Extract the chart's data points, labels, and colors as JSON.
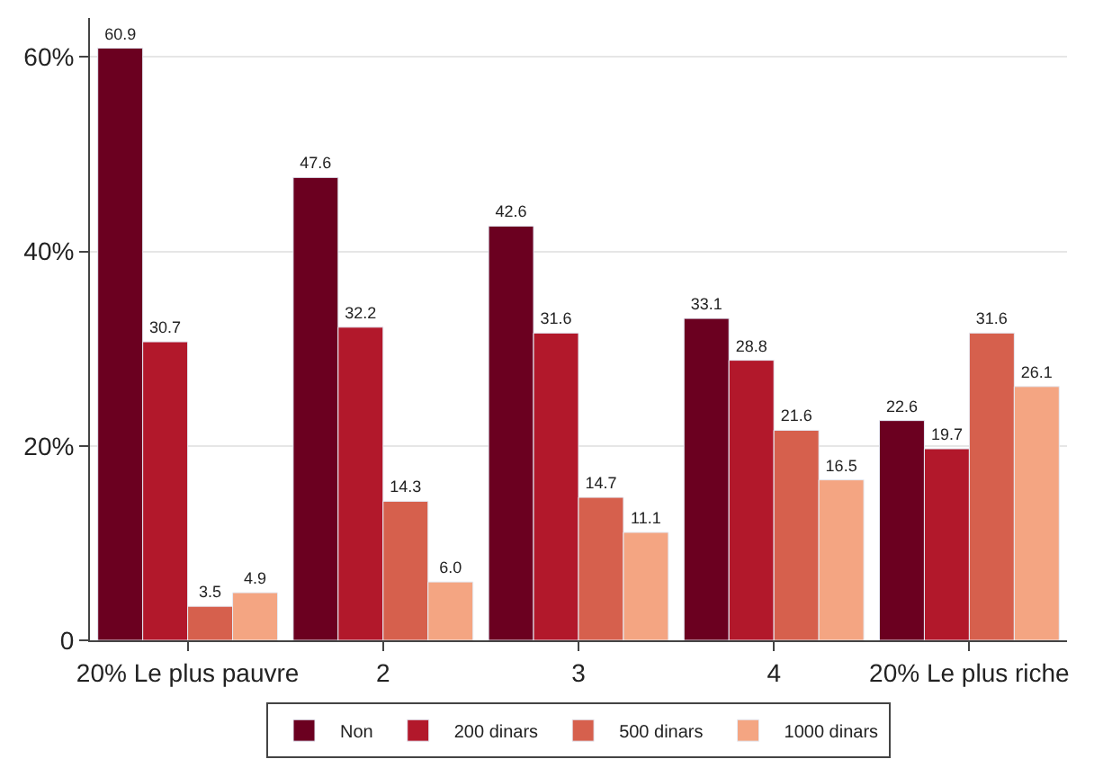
{
  "chart_data": {
    "type": "bar",
    "categories": [
      "20% Le plus pauvre",
      "2",
      "3",
      "4",
      "20% Le plus riche"
    ],
    "series": [
      {
        "name": "Non",
        "color": "#6b0020",
        "values": [
          60.9,
          47.6,
          42.6,
          33.1,
          22.6
        ],
        "value_labels": [
          "60.9",
          "47.6",
          "42.6",
          "33.1",
          "22.6"
        ]
      },
      {
        "name": "200 dinars",
        "color": "#b2182b",
        "values": [
          30.7,
          32.2,
          31.6,
          28.8,
          19.7
        ],
        "value_labels": [
          "30.7",
          "32.2",
          "31.6",
          "28.8",
          "19.7"
        ]
      },
      {
        "name": "500 dinars",
        "color": "#d6604d",
        "values": [
          3.5,
          14.3,
          14.7,
          21.6,
          31.6
        ],
        "value_labels": [
          "3.5",
          "14.3",
          "14.7",
          "21.6",
          "31.6"
        ]
      },
      {
        "name": "1000 dinars",
        "color": "#f4a582",
        "values": [
          4.9,
          6.0,
          11.1,
          16.5,
          26.1
        ],
        "value_labels": [
          "4.9",
          "6.0",
          "11.1",
          "16.5",
          "26.1"
        ]
      }
    ],
    "ylim": [
      0,
      64
    ],
    "yticks": [
      0,
      {
        "value": 20,
        "label": "20%"
      },
      {
        "value": 40,
        "label": "40%"
      },
      {
        "value": 60,
        "label": "60%"
      }
    ],
    "grid": "y",
    "legend": "bottom"
  }
}
